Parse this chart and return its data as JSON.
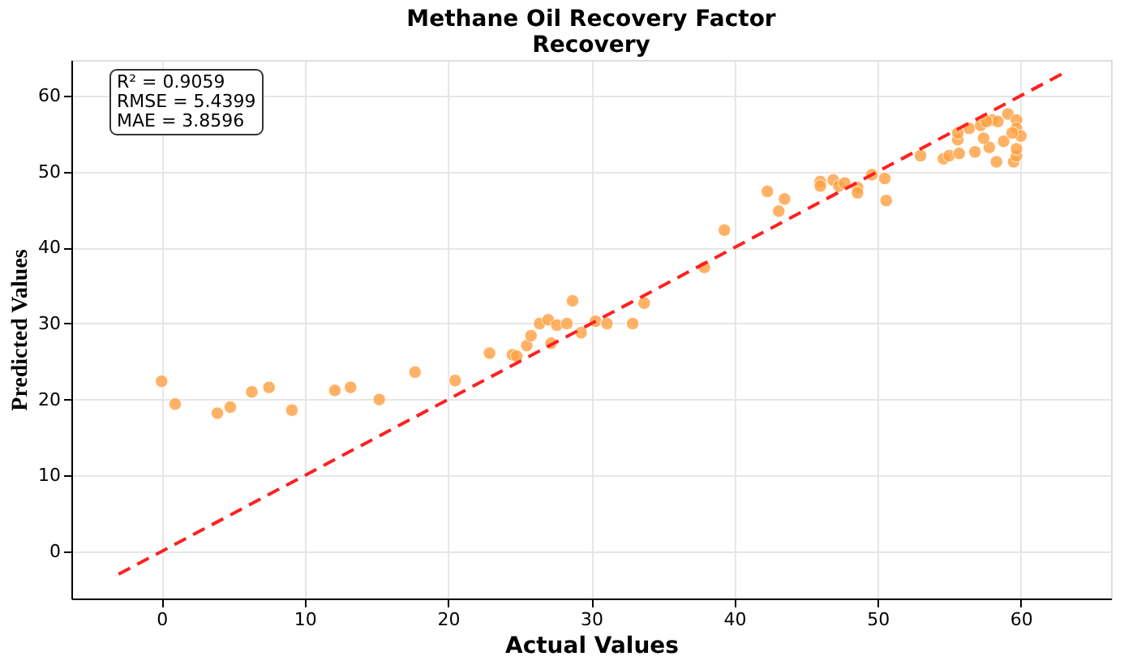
{
  "chart_data": {
    "type": "scatter",
    "title": [
      "Methane Oil Recovery Factor",
      "Recovery"
    ],
    "xlabel": "Actual Values",
    "ylabel": "Predicted Values",
    "annotations": [
      "R² = 0.9059\nRMSE = 5.4399\nMAE = 3.8596"
    ],
    "xlim": [
      -6.3,
      66.3
    ],
    "ylim": [
      -6.2,
      64.7
    ],
    "xticks": [
      0,
      10,
      20,
      30,
      40,
      50,
      60
    ],
    "yticks": [
      0,
      10,
      20,
      30,
      40,
      50,
      60
    ],
    "grid": true,
    "series": [
      {
        "color": "#ffa040",
        "marker": "circle",
        "x": [
          0,
          0.95,
          3.9,
          4.8,
          6.3,
          7.5,
          9.1,
          12.1,
          13.2,
          15.2,
          17.7,
          20.5,
          22.9,
          24.5,
          24.8,
          25.5,
          25.8,
          26.4,
          27,
          27.2,
          27.6,
          28.3,
          28.7,
          29.3,
          30.3,
          31.1,
          32.9,
          33.7,
          37.9,
          39.3,
          42.3,
          43.5,
          43.1,
          46.0,
          46.0,
          46.9,
          47.3,
          47.7,
          48.6,
          48.6,
          49.6,
          50.5,
          50.6,
          53.0,
          54.6,
          55.0,
          55.7,
          56.8,
          57.8,
          58.3,
          59.5,
          59.7,
          59.7,
          55.6,
          55.6,
          56.4,
          57.4,
          57.2,
          58.0,
          58.4,
          59.1,
          59.7,
          59.7,
          60.0,
          58.8,
          59.4,
          57.6
        ],
        "values": [
          22.4,
          19.4,
          18.2,
          19.0,
          21.0,
          21.6,
          18.6,
          21.2,
          21.6,
          20.0,
          23.6,
          22.5,
          26.1,
          25.9,
          25.7,
          27.1,
          28.4,
          30.0,
          30.5,
          27.4,
          29.8,
          30.0,
          33.0,
          28.8,
          30.3,
          30.0,
          30.0,
          32.7,
          37.4,
          42.3,
          47.4,
          46.4,
          44.8,
          48.7,
          48.1,
          48.9,
          48.1,
          48.5,
          47.9,
          47.2,
          49.6,
          49.1,
          46.2,
          52.1,
          51.7,
          52.1,
          52.4,
          52.6,
          53.2,
          51.3,
          51.3,
          52.1,
          53.0,
          54.2,
          55.1,
          55.7,
          54.4,
          56.1,
          56.8,
          56.6,
          57.6,
          56.8,
          55.7,
          54.7,
          54.0,
          55.1,
          56.6
        ]
      },
      {
        "type": "line",
        "color": "#ff2020",
        "line_style": "dashed",
        "marker": "none",
        "x": [
          -3,
          63
        ],
        "values": [
          -3,
          63
        ]
      }
    ]
  }
}
